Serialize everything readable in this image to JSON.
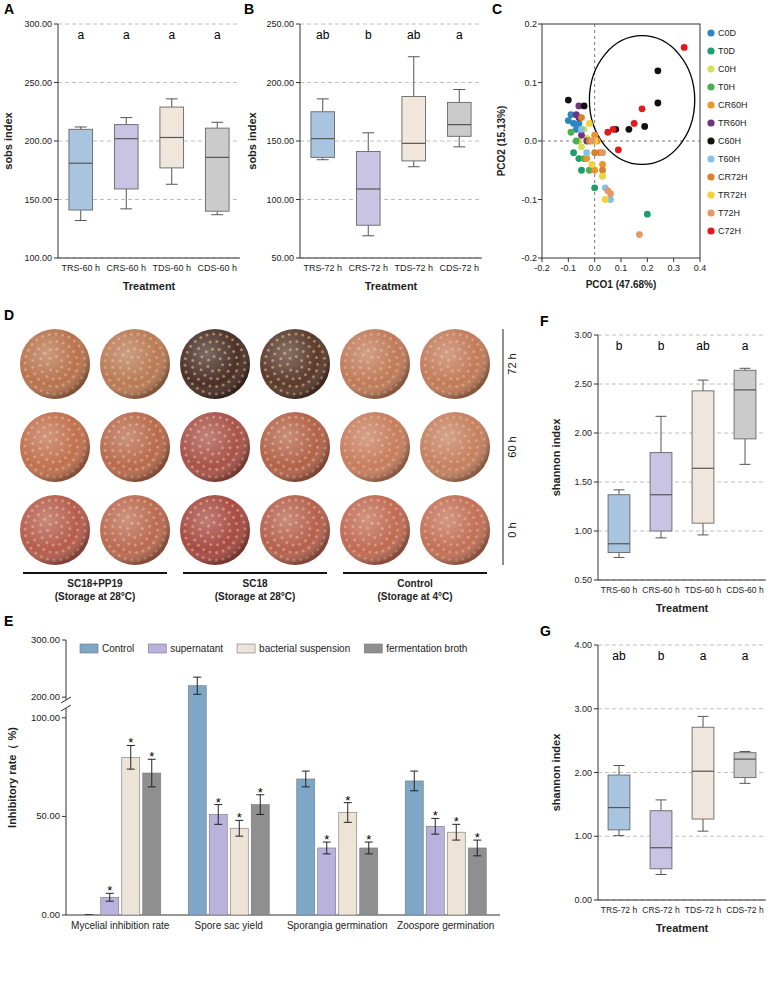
{
  "chart_data": [
    {
      "panel": "A",
      "type": "box",
      "categories": [
        "TRS-60 h",
        "CRS-60 h",
        "TDS-60 h",
        "CDS-60 h"
      ],
      "colors": [
        "#a9c4de",
        "#c9c4e4",
        "#f1e6dc",
        "#cbcbcb"
      ],
      "ylabel": "sobs index",
      "xlabel": "Treatment",
      "ylim": [
        100,
        300
      ],
      "yticks": [
        {
          "value": 100,
          "label": "100.00"
        },
        {
          "value": 150,
          "label": "150.00"
        },
        {
          "value": 200,
          "label": "200.00"
        },
        {
          "value": 250,
          "label": "250.00"
        },
        {
          "value": 300,
          "label": "300.00"
        }
      ],
      "grid": true,
      "whisker_low": [
        132,
        142,
        163,
        137
      ],
      "q1": [
        141,
        159,
        177,
        140
      ],
      "median": [
        181,
        202,
        203,
        186
      ],
      "q3": [
        210,
        214,
        229,
        211
      ],
      "whisker_high": [
        212,
        220,
        236,
        216
      ],
      "annotations": [
        "a",
        "a",
        "a",
        "a"
      ]
    },
    {
      "panel": "B",
      "type": "box",
      "categories": [
        "TRS-72 h",
        "CRS-72 h",
        "TDS-72 h",
        "CDS-72 h"
      ],
      "colors": [
        "#a9c4de",
        "#c9c4e4",
        "#f1e6dc",
        "#cbcbcb"
      ],
      "ylabel": "sobs index",
      "xlabel": "Treatment",
      "ylim": [
        50,
        250
      ],
      "yticks": [
        {
          "value": 50,
          "label": "50.00"
        },
        {
          "value": 100,
          "label": "100.00"
        },
        {
          "value": 150,
          "label": "150.00"
        },
        {
          "value": 200,
          "label": "200.00"
        },
        {
          "value": 250,
          "label": "250.00"
        }
      ],
      "grid": true,
      "whisker_low": [
        134,
        69,
        128,
        145
      ],
      "q1": [
        136,
        78,
        133,
        154
      ],
      "median": [
        152,
        109,
        148,
        164
      ],
      "q3": [
        175,
        141,
        188,
        183
      ],
      "whisker_high": [
        186,
        157,
        222,
        194
      ],
      "annotations": [
        "ab",
        "b",
        "ab",
        "a"
      ]
    },
    {
      "panel": "C",
      "type": "scatter",
      "xlabel": "PCO1 (47.68%)",
      "ylabel": "PCO2 (15.13%)",
      "xlim": [
        -0.2,
        0.4
      ],
      "ylim": [
        -0.2,
        0.2
      ],
      "xticks": [
        -0.2,
        -0.1,
        {
          "value": 0,
          "label": "0.0"
        },
        0.1,
        0.2,
        0.3,
        0.4
      ],
      "yticks": [
        -0.2,
        -0.1,
        {
          "value": 0,
          "label": "0.0"
        },
        0.1,
        0.2
      ],
      "legend": "right",
      "marker": "circle",
      "highlight": {
        "x": [
          -0.02,
          0.38
        ],
        "y": [
          -0.04,
          0.18
        ]
      },
      "series": [
        {
          "name": "C0D",
          "color": "#2e86c1",
          "x": [
            -0.1,
            -0.09,
            -0.08,
            -0.07,
            -0.06
          ],
          "values": [
            0.035,
            0.045,
            0.03,
            0.02,
            0.03
          ]
        },
        {
          "name": "T0D",
          "color": "#1e9e6a",
          "x": [
            -0.08,
            -0.06,
            -0.05,
            0.0,
            0.2
          ],
          "values": [
            -0.02,
            -0.03,
            -0.05,
            -0.08,
            -0.125
          ]
        },
        {
          "name": "C0H",
          "color": "#d4e157",
          "x": [
            -0.06,
            -0.04,
            -0.05,
            -0.03
          ],
          "values": [
            0.0,
            0.02,
            -0.01,
            0.005
          ]
        },
        {
          "name": "T0H",
          "color": "#4caf50",
          "x": [
            -0.09,
            -0.07,
            -0.04,
            -0.02
          ],
          "values": [
            0.015,
            0.0,
            -0.03,
            -0.05
          ]
        },
        {
          "name": "CR60H",
          "color": "#f0932b",
          "x": [
            -0.03,
            0.0,
            0.03,
            0.01,
            0.0
          ],
          "values": [
            -0.03,
            0.01,
            -0.04,
            0.0,
            -0.05
          ]
        },
        {
          "name": "TR60H",
          "color": "#6c3483",
          "x": [
            -0.07,
            -0.06,
            -0.06,
            -0.05,
            -0.03
          ],
          "values": [
            0.045,
            0.06,
            0.04,
            0.01,
            0.0
          ]
        },
        {
          "name": "C60H",
          "color": "#111111",
          "x": [
            -0.1,
            -0.04,
            0.08,
            0.13,
            0.19,
            0.24,
            0.24
          ],
          "values": [
            0.07,
            0.06,
            0.02,
            0.02,
            0.025,
            0.065,
            0.12
          ]
        },
        {
          "name": "T60H",
          "color": "#85c1e9",
          "x": [
            -0.05,
            -0.03,
            0.04,
            0.06,
            0.03
          ],
          "values": [
            0.02,
            -0.02,
            -0.08,
            -0.1,
            -0.06
          ]
        },
        {
          "name": "CR72H",
          "color": "#d9822b",
          "x": [
            -0.05,
            0.02,
            0.03,
            -0.02,
            0.0
          ],
          "values": [
            0.04,
            -0.02,
            -0.05,
            0.0,
            -0.02
          ]
        },
        {
          "name": "TR72H",
          "color": "#f4d03f",
          "x": [
            -0.02,
            0.0,
            0.03,
            0.04,
            -0.01
          ],
          "values": [
            0.03,
            0.0,
            -0.06,
            -0.1,
            -0.04
          ]
        },
        {
          "name": "T72H",
          "color": "#e59866",
          "x": [
            0.05,
            0.06,
            0.17,
            0.03,
            -0.01
          ],
          "values": [
            -0.085,
            -0.09,
            -0.16,
            -0.02,
            0.0
          ]
        },
        {
          "name": "C72H",
          "color": "#e31a1c",
          "x": [
            0.05,
            0.09,
            0.07,
            0.15,
            0.18,
            0.34
          ],
          "values": [
            0.015,
            -0.015,
            0.02,
            0.03,
            0.055,
            0.16
          ]
        }
      ]
    },
    {
      "panel": "D",
      "type": "image",
      "rows": [
        "72 h",
        "60 h",
        "0 h"
      ],
      "groups": [
        {
          "label": "SC18+PP19",
          "note": "(Storage at 28°C)"
        },
        {
          "label": "SC18",
          "note": "(Storage at 28°C)"
        },
        {
          "label": "Control",
          "note": "(Storage at 4°C)"
        }
      ],
      "colors": [
        [
          "#b8734f",
          "#b97a56",
          "#4a3028",
          "#5a3a2c",
          "#c07a5a",
          "#c27b5a"
        ],
        [
          "#c0704f",
          "#b86a4d",
          "#a8524a",
          "#b26249",
          "#c77d5e",
          "#c58061"
        ],
        [
          "#b55c4e",
          "#ba6a52",
          "#a74a44",
          "#b5604e",
          "#c06a55",
          "#c27058"
        ]
      ]
    },
    {
      "panel": "E",
      "type": "bar",
      "ylabel": "Inhibitory rate（ %)",
      "categories": [
        "Mycelial inhibition rate",
        "Spore sac yield",
        "Sporangia germination",
        "Zoospore germination"
      ],
      "ylim": [
        0,
        300
      ],
      "y_break": [
        105,
        195
      ],
      "yticks": [
        {
          "value": 0,
          "label": "0.00"
        },
        {
          "value": 50,
          "label": "50.00"
        },
        {
          "value": 100,
          "label": "100.00"
        },
        {
          "value": 200,
          "label": "200.00"
        },
        {
          "value": 300,
          "label": "300.00"
        }
      ],
      "legend": "top",
      "series": [
        {
          "name": "Control",
          "color": "#7ea6c6",
          "values": [
            0,
            220,
            69,
            68
          ],
          "errors": [
            0,
            15,
            4,
            5
          ],
          "annotations": [
            null,
            null,
            null,
            null
          ]
        },
        {
          "name": "supernatant",
          "color": "#b9b2dc",
          "values": [
            9,
            51,
            34,
            45
          ],
          "errors": [
            2,
            5,
            3,
            4
          ],
          "annotations": [
            "*",
            "*",
            "*",
            "*"
          ]
        },
        {
          "name": "bacterial suspension",
          "color": "#ede3d7",
          "values": [
            80,
            44,
            52,
            42
          ],
          "errors": [
            6,
            4,
            5,
            4
          ],
          "annotations": [
            "*",
            "*",
            "*",
            "*"
          ]
        },
        {
          "name": "fermentation broth",
          "color": "#8f8f8f",
          "values": [
            72,
            56,
            34,
            34
          ],
          "errors": [
            7,
            5,
            3,
            4
          ],
          "annotations": [
            "*",
            "*",
            "*",
            "*"
          ]
        }
      ]
    },
    {
      "panel": "F",
      "type": "box",
      "categories": [
        "TRS-60 h",
        "CRS-60 h",
        "TDS-60 h",
        "CDS-60 h"
      ],
      "colors": [
        "#a9c4de",
        "#c9c4e4",
        "#f1e6dc",
        "#cbcbcb"
      ],
      "ylabel": "shannon index",
      "xlabel": "Treatment",
      "ylim": [
        0.5,
        3
      ],
      "yticks": [
        {
          "value": 0.5,
          "label": "0.50"
        },
        {
          "value": 1,
          "label": "1.00"
        },
        {
          "value": 1.5,
          "label": "1.50"
        },
        {
          "value": 2,
          "label": "2.00"
        },
        {
          "value": 2.5,
          "label": "2.50"
        },
        {
          "value": 3,
          "label": "3.00"
        }
      ],
      "grid": true,
      "whisker_low": [
        0.73,
        0.93,
        0.96,
        1.68
      ],
      "q1": [
        0.78,
        1.0,
        1.08,
        1.94
      ],
      "median": [
        0.87,
        1.37,
        1.64,
        2.44
      ],
      "q3": [
        1.37,
        1.8,
        2.43,
        2.64
      ],
      "whisker_high": [
        1.42,
        2.17,
        2.54,
        2.66
      ],
      "annotations": [
        "b",
        "b",
        "ab",
        "a"
      ]
    },
    {
      "panel": "G",
      "type": "box",
      "categories": [
        "TRS-72 h",
        "CRS-72 h",
        "TDS-72 h",
        "CDS-72 h"
      ],
      "colors": [
        "#a9c4de",
        "#c9c4e4",
        "#f1e6dc",
        "#cbcbcb"
      ],
      "ylabel": "shannon index",
      "xlabel": "Treatment",
      "ylim": [
        0,
        4
      ],
      "yticks": [
        {
          "value": 0,
          "label": "0.00"
        },
        {
          "value": 1,
          "label": "1.00"
        },
        {
          "value": 2,
          "label": "2.00"
        },
        {
          "value": 3,
          "label": "3.00"
        },
        {
          "value": 4,
          "label": "4.00"
        }
      ],
      "grid": true,
      "whisker_low": [
        1.01,
        0.4,
        1.08,
        1.83
      ],
      "q1": [
        1.1,
        0.49,
        1.27,
        1.92
      ],
      "median": [
        1.45,
        0.82,
        2.02,
        2.21
      ],
      "q3": [
        1.96,
        1.4,
        2.71,
        2.31
      ],
      "whisker_high": [
        2.11,
        1.57,
        2.88,
        2.33
      ],
      "annotations": [
        "ab",
        "b",
        "a",
        "a"
      ]
    }
  ]
}
